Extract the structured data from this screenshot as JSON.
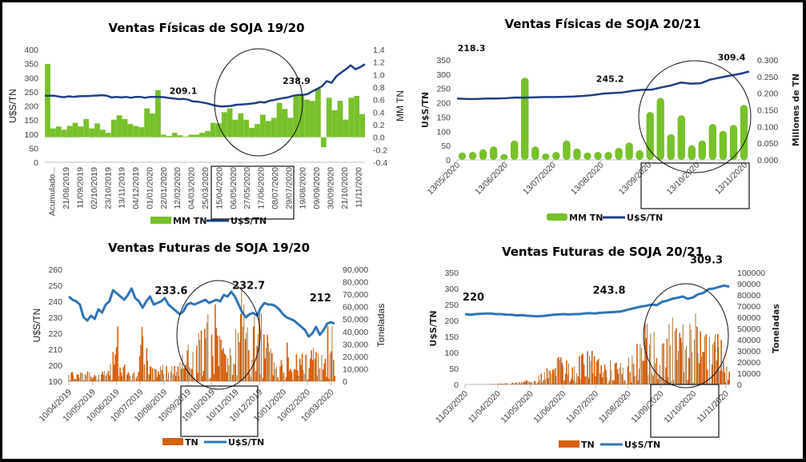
{
  "chart_data": [
    {
      "id": "fisicas-1920",
      "type": "bar+line",
      "title": "Ventas Físicas de SOJA 19/20",
      "ylabel_left": "U$S/TN",
      "ylabel_right": "MM TN",
      "ylim_left": [
        0,
        400
      ],
      "yticks_left": [
        "0",
        "50",
        "100",
        "150",
        "200",
        "250",
        "300",
        "350",
        "400"
      ],
      "ylim_right": [
        -0.4,
        1.4
      ],
      "yticks_right": [
        "-0.4",
        "-0.2",
        "0.0",
        "0.2",
        "0.4",
        "0.6",
        "0.8",
        "1.0",
        "1.2",
        "1.4"
      ],
      "xtick_labels": [
        "Acumulado...",
        "21/08/2019",
        "11/09/2019",
        "02/10/2019",
        "23/10/2019",
        "13/11/2019",
        "04/12/2019",
        "01/01/2020",
        "22/01/2020",
        "12/02/2020",
        "04/03/2020",
        "25/03/2020",
        "15/04/2020",
        "06/05/2020",
        "27/05/2020",
        "17/06/2020",
        "08/07/2020",
        "29/07/2020",
        "19/08/2020",
        "09/09/2020",
        "30/09/2020",
        "21/10/2020",
        "11/11/2020"
      ],
      "legend": [
        "MM TN",
        "U$S/TN"
      ],
      "legend_position": "bottom",
      "bar_series": {
        "name": "MM TN",
        "axis": "right",
        "color": "#77c12a",
        "values": [
          1.17,
          0.14,
          0.17,
          0.12,
          0.18,
          0.23,
          0.17,
          0.29,
          0.14,
          0.22,
          0.12,
          0.07,
          0.28,
          0.35,
          0.29,
          0.21,
          0.18,
          0.16,
          0.46,
          0.38,
          0.75,
          0.04,
          0.02,
          0.07,
          0.03,
          0.01,
          0.04,
          0.04,
          0.07,
          0.1,
          0.23,
          0.22,
          0.4,
          0.46,
          0.28,
          0.38,
          0.28,
          0.15,
          0.21,
          0.36,
          0.26,
          0.31,
          0.55,
          0.45,
          0.31,
          0.66,
          0.66,
          0.6,
          0.58,
          0.78,
          -0.16,
          0.63,
          0.43,
          0.58,
          0.28,
          0.63,
          0.66,
          0.37
        ]
      },
      "line_series": {
        "name": "U$S/TN",
        "axis": "left",
        "color": "#1f3f86",
        "values": [
          236,
          236,
          236,
          233,
          231,
          234,
          232,
          234,
          235,
          235,
          236,
          237,
          238,
          236,
          230,
          232,
          230,
          232,
          229,
          232,
          232,
          229,
          232,
          232,
          232,
          231,
          228,
          226,
          224,
          225,
          222,
          216,
          215,
          212,
          209.1,
          204,
          200,
          198,
          199,
          200,
          204,
          205,
          206,
          208,
          210,
          214,
          212,
          218,
          221,
          225,
          228,
          231,
          236,
          238.9,
          238.9,
          242,
          252,
          260,
          270,
          288,
          282,
          305,
          318,
          330,
          344,
          330,
          338,
          348
        ]
      },
      "annotations": [
        {
          "text": "209.1",
          "series": "U$S/TN"
        },
        {
          "text": "238.9",
          "series": "U$S/TN"
        }
      ],
      "highlights": [
        "ellipse around 15/04/2020–29/07/2020",
        "box around x labels 15/04/2020–29/07/2020"
      ]
    },
    {
      "id": "fisicas-2021",
      "type": "bar+line",
      "title": "Ventas Físicas de SOJA 20/21",
      "ylabel_left": "U$S/TN",
      "ylabel_right": "Millones de TN",
      "ylim_left": [
        0,
        350
      ],
      "yticks_left": [
        "0",
        "50",
        "100",
        "150",
        "200",
        "250",
        "300",
        "350"
      ],
      "ylim_right": [
        0,
        0.3
      ],
      "yticks_right": [
        "0.000",
        "0.050",
        "0.100",
        "0.150",
        "0.200",
        "0.250",
        "0.300"
      ],
      "xtick_labels": [
        "13/05/2020",
        "13/06/2020",
        "13/07/2020",
        "13/08/2020",
        "13/09/2020",
        "13/10/2020",
        "13/11/2020"
      ],
      "legend": [
        "MM TN",
        "U$S/TN"
      ],
      "legend_position": "bottom",
      "bar_series": {
        "name": "MM TN",
        "axis": "right",
        "color": "#77c12a",
        "values": [
          0.022,
          0.024,
          0.032,
          0.04,
          0.017,
          0.058,
          0.247,
          0.04,
          0.019,
          0.024,
          0.058,
          0.034,
          0.022,
          0.024,
          0.024,
          0.036,
          0.052,
          0.029,
          0.144,
          0.186,
          0.077,
          0.134,
          0.044,
          0.058,
          0.108,
          0.087,
          0.105,
          0.165
        ]
      },
      "line_series": {
        "name": "U$S/TN",
        "axis": "left",
        "color": "#1f3f86",
        "values": [
          215,
          213,
          213,
          215,
          215,
          216,
          218.3,
          218,
          219,
          220,
          220,
          221,
          222,
          224,
          227,
          232,
          234,
          236,
          242,
          245.2,
          246,
          254,
          261,
          271,
          267,
          268,
          281,
          288,
          295,
          301,
          309.4
        ]
      },
      "annotations": [
        {
          "text": "218.3"
        },
        {
          "text": "245.2"
        },
        {
          "text": "309.4"
        }
      ],
      "highlights": [
        "circle around late Sep–Nov 2020 bars",
        "box around x labels 13/09/2020–13/11/2020"
      ]
    },
    {
      "id": "futuras-1920",
      "type": "bar+line",
      "title": "Ventas Futuras de SOJA 19/20",
      "ylabel_left": "U$S/TN",
      "ylabel_right": "Toneladas",
      "ylim_left": [
        190,
        260
      ],
      "yticks_left": [
        "190",
        "200",
        "210",
        "220",
        "230",
        "240",
        "250",
        "260"
      ],
      "ylim_right": [
        0,
        90000
      ],
      "yticks_right": [
        "0",
        "10,000",
        "20,000",
        "30,000",
        "40,000",
        "50,000",
        "60,000",
        "70,000",
        "80,000",
        "90,000"
      ],
      "xtick_labels": [
        "10/04/2019",
        "10/05/2019",
        "10/06/2019",
        "10/07/2019",
        "10/08/2019",
        "10/09/2019",
        "10/10/2019",
        "10/11/2019",
        "10/12/2019",
        "10/01/2020",
        "10/02/2020",
        "10/03/2020"
      ],
      "legend": [
        "TN",
        "U$S/TN"
      ],
      "legend_position": "bottom",
      "bar_series": {
        "name": "TN",
        "axis": "right",
        "color": "#d7610e",
        "profile": [
          [
            0,
            8000
          ],
          [
            0.03,
            6000
          ],
          [
            0.06,
            10000
          ],
          [
            0.09,
            5000
          ],
          [
            0.12,
            6000
          ],
          [
            0.15,
            12000
          ],
          [
            0.17,
            30000
          ],
          [
            0.18,
            60000
          ],
          [
            0.2,
            25000
          ],
          [
            0.22,
            8000
          ],
          [
            0.26,
            10000
          ],
          [
            0.28,
            55000
          ],
          [
            0.3,
            12000
          ],
          [
            0.34,
            12000
          ],
          [
            0.38,
            14000
          ],
          [
            0.42,
            25000
          ],
          [
            0.46,
            32000
          ],
          [
            0.5,
            40000
          ],
          [
            0.55,
            68000
          ],
          [
            0.58,
            30000
          ],
          [
            0.62,
            25000
          ],
          [
            0.65,
            72000
          ],
          [
            0.68,
            35000
          ],
          [
            0.7,
            50000
          ],
          [
            0.72,
            55000
          ],
          [
            0.75,
            32000
          ],
          [
            0.78,
            10000
          ],
          [
            0.82,
            30000
          ],
          [
            0.86,
            25000
          ],
          [
            0.9,
            22000
          ],
          [
            0.94,
            28000
          ],
          [
            0.97,
            40000
          ],
          [
            1,
            45000
          ]
        ]
      },
      "line_series": {
        "name": "U$S/TN",
        "axis": "left",
        "color": "#2e75b6",
        "values": [
          243,
          241,
          240,
          238,
          230,
          228,
          231,
          229,
          235,
          233,
          238,
          240,
          247,
          245,
          243,
          241,
          244,
          248,
          242,
          240,
          236,
          240,
          243,
          238,
          239,
          240,
          242,
          238,
          236,
          234,
          232,
          233.6,
          238,
          239,
          238,
          239,
          240,
          241,
          239,
          240,
          241,
          240,
          244,
          243,
          246,
          243,
          238,
          233,
          230,
          232,
          232.7,
          231,
          236,
          239,
          238,
          238,
          237,
          235,
          232,
          230,
          229,
          228,
          226,
          224,
          222,
          218,
          220,
          224,
          219,
          222,
          226,
          227,
          226
        ]
      },
      "annotations": [
        {
          "text": "233.6"
        },
        {
          "text": "232.7"
        },
        {
          "text": "212"
        }
      ],
      "highlights": [
        "ellipse around 10/09/2019–10/12/2019",
        "box around x labels 10/10/2019–10/12/2019"
      ]
    },
    {
      "id": "futuras-2021",
      "type": "bar+line",
      "title": "Ventas Futuras de SOJA 20/21",
      "ylabel_left": "U$S/TN",
      "ylabel_right": "Toneladas",
      "ylim_left": [
        0,
        350
      ],
      "yticks_left": [
        "0",
        "50",
        "100",
        "150",
        "200",
        "250",
        "300",
        "350"
      ],
      "ylim_right": [
        0,
        100000
      ],
      "yticks_right": [
        "0",
        "10000",
        "20000",
        "30000",
        "40000",
        "50000",
        "60000",
        "70000",
        "80000",
        "90000",
        "100000"
      ],
      "xtick_labels": [
        "11/03/2020",
        "11/04/2020",
        "11/05/2020",
        "11/06/2020",
        "11/07/2020",
        "11/08/2020",
        "11/09/2020",
        "11/10/2020",
        "11/11/2020"
      ],
      "legend": [
        "TN",
        "U$S/TN"
      ],
      "legend_position": "bottom",
      "bar_series": {
        "name": "TN",
        "axis": "right",
        "color": "#d7610e",
        "profile": [
          [
            0,
            0
          ],
          [
            0.1,
            500
          ],
          [
            0.2,
            2000
          ],
          [
            0.26,
            6000
          ],
          [
            0.3,
            12000
          ],
          [
            0.35,
            25000
          ],
          [
            0.4,
            18000
          ],
          [
            0.45,
            28000
          ],
          [
            0.5,
            28000
          ],
          [
            0.55,
            20000
          ],
          [
            0.6,
            22000
          ],
          [
            0.65,
            40000
          ],
          [
            0.7,
            60000
          ],
          [
            0.73,
            30000
          ],
          [
            0.76,
            65000
          ],
          [
            0.8,
            50000
          ],
          [
            0.84,
            55000
          ],
          [
            0.88,
            65000
          ],
          [
            0.92,
            40000
          ],
          [
            0.95,
            60000
          ],
          [
            0.98,
            30000
          ],
          [
            1,
            15000
          ]
        ]
      },
      "line_series": {
        "name": "U$S/TN",
        "axis": "left",
        "color": "#2e75b6",
        "values": [
          220,
          218,
          220,
          221,
          222,
          222,
          220,
          220,
          218,
          218,
          216,
          217,
          215,
          214,
          213,
          214,
          216,
          218,
          219,
          220,
          219,
          220,
          220,
          222,
          223,
          222,
          224,
          225,
          226,
          227,
          228,
          232,
          236,
          240,
          243.8,
          246,
          250,
          248,
          258,
          262,
          268,
          271,
          275,
          268,
          272,
          282,
          286,
          298,
          300,
          305,
          309.3,
          306
        ]
      },
      "annotations": [
        {
          "text": "220"
        },
        {
          "text": "243.8"
        },
        {
          "text": "309.3"
        }
      ],
      "highlights": [
        "circle around 11/09/2020–11/11/2020 bars",
        "box around x labels 11/09/2020–11/11/2020"
      ]
    }
  ]
}
